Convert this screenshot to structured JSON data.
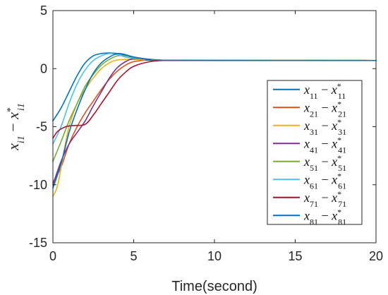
{
  "chart_data": {
    "type": "line",
    "title": "",
    "xlabel": "Time(second)",
    "ylabel": {
      "main": "x",
      "sub1": "i1",
      "minus": " − ",
      "main2": "x",
      "sup2": "*",
      "sub2": "i1"
    },
    "xlim": [
      0,
      20
    ],
    "ylim": [
      -15,
      5
    ],
    "xticks": [
      0,
      5,
      10,
      15,
      20
    ],
    "yticks": [
      -15,
      -10,
      -5,
      0,
      5
    ],
    "xtick_labels": [
      "0",
      "5",
      "10",
      "15",
      "20"
    ],
    "ytick_labels": [
      "-15",
      "-10",
      "-5",
      "0",
      "5"
    ],
    "grid": false,
    "legend_position": "center-right",
    "series": [
      {
        "name": "x11 − x*11",
        "legend": {
          "main": "x",
          "sub": "11",
          "main2": "x",
          "sup": "*",
          "sub2": "11"
        },
        "color": "#0072BD",
        "points": [
          [
            0,
            -4.5
          ],
          [
            0.5,
            -3.4
          ],
          [
            1.0,
            -2.0
          ],
          [
            1.5,
            -0.6
          ],
          [
            2.0,
            0.5
          ],
          [
            2.5,
            1.1
          ],
          [
            3.0,
            1.3
          ],
          [
            3.5,
            1.35
          ],
          [
            4.0,
            1.3
          ],
          [
            4.5,
            1.15
          ],
          [
            5.0,
            0.95
          ],
          [
            6.0,
            0.8
          ],
          [
            7.0,
            0.72
          ],
          [
            8.0,
            0.7
          ],
          [
            20,
            0.7
          ]
        ]
      },
      {
        "name": "x21 − x*21",
        "legend": {
          "main": "x",
          "sub": "21",
          "main2": "x",
          "sup": "*",
          "sub2": "21"
        },
        "color": "#D95319",
        "points": [
          [
            0,
            -9.8
          ],
          [
            0.5,
            -8.5
          ],
          [
            1.0,
            -6.5
          ],
          [
            1.5,
            -5.0
          ],
          [
            2.0,
            -3.8
          ],
          [
            2.5,
            -2.8
          ],
          [
            3.0,
            -1.8
          ],
          [
            3.5,
            -0.9
          ],
          [
            4.0,
            -0.2
          ],
          [
            4.5,
            0.3
          ],
          [
            5.0,
            0.6
          ],
          [
            6.0,
            0.75
          ],
          [
            7.0,
            0.72
          ],
          [
            8.0,
            0.7
          ],
          [
            20,
            0.7
          ]
        ]
      },
      {
        "name": "x31 − x*31",
        "legend": {
          "main": "x",
          "sub": "31",
          "main2": "x",
          "sup": "*",
          "sub2": "31"
        },
        "color": "#EDB120",
        "points": [
          [
            0,
            -11.0
          ],
          [
            0.3,
            -10.0
          ],
          [
            0.7,
            -7.0
          ],
          [
            1.0,
            -5.0
          ],
          [
            1.5,
            -3.0
          ],
          [
            2.0,
            -1.8
          ],
          [
            2.5,
            -0.8
          ],
          [
            3.0,
            0.0
          ],
          [
            3.5,
            0.5
          ],
          [
            4.0,
            0.75
          ],
          [
            5.0,
            0.8
          ],
          [
            6.0,
            0.75
          ],
          [
            7.0,
            0.72
          ],
          [
            20,
            0.7
          ]
        ]
      },
      {
        "name": "x41 − x*41",
        "legend": {
          "main": "x",
          "sub": "41",
          "main2": "x",
          "sup": "*",
          "sub2": "41"
        },
        "color": "#7E2F8E",
        "points": [
          [
            0,
            -10.0
          ],
          [
            0.5,
            -8.0
          ],
          [
            1.0,
            -6.5
          ],
          [
            1.5,
            -5.5
          ],
          [
            2.0,
            -4.5
          ],
          [
            2.5,
            -3.2
          ],
          [
            3.0,
            -2.0
          ],
          [
            3.5,
            -0.8
          ],
          [
            4.0,
            0.1
          ],
          [
            4.5,
            0.6
          ],
          [
            5.0,
            0.85
          ],
          [
            6.0,
            0.8
          ],
          [
            7.0,
            0.72
          ],
          [
            20,
            0.7
          ]
        ]
      },
      {
        "name": "x51 − x*51",
        "legend": {
          "main": "x",
          "sub": "51",
          "main2": "x",
          "sup": "*",
          "sub2": "51"
        },
        "color": "#77AC30",
        "points": [
          [
            0,
            -8.0
          ],
          [
            0.5,
            -6.3
          ],
          [
            1.0,
            -4.5
          ],
          [
            1.5,
            -3.0
          ],
          [
            2.0,
            -1.5
          ],
          [
            2.5,
            -0.5
          ],
          [
            3.0,
            0.3
          ],
          [
            3.5,
            0.8
          ],
          [
            4.0,
            1.1
          ],
          [
            4.5,
            1.1
          ],
          [
            5.0,
            1.0
          ],
          [
            6.0,
            0.8
          ],
          [
            7.0,
            0.72
          ],
          [
            20,
            0.7
          ]
        ]
      },
      {
        "name": "x61 − x*61",
        "legend": {
          "main": "x",
          "sub": "61",
          "main2": "x",
          "sup": "*",
          "sub2": "61"
        },
        "color": "#4DBEEE",
        "points": [
          [
            0,
            -6.5
          ],
          [
            0.5,
            -5.0
          ],
          [
            1.0,
            -3.0
          ],
          [
            1.5,
            -1.3
          ],
          [
            2.0,
            -0.1
          ],
          [
            2.5,
            0.7
          ],
          [
            3.0,
            1.1
          ],
          [
            3.5,
            1.3
          ],
          [
            4.0,
            1.2
          ],
          [
            4.5,
            1.0
          ],
          [
            5.0,
            0.9
          ],
          [
            6.0,
            0.8
          ],
          [
            7.0,
            0.72
          ],
          [
            20,
            0.7
          ]
        ]
      },
      {
        "name": "x71 − x*71",
        "legend": {
          "main": "x",
          "sub": "71",
          "main2": "x",
          "sup": "*",
          "sub2": "71"
        },
        "color": "#A2142F",
        "points": [
          [
            0,
            -6.0
          ],
          [
            0.3,
            -5.4
          ],
          [
            0.8,
            -5.0
          ],
          [
            1.3,
            -4.9
          ],
          [
            2.0,
            -4.8
          ],
          [
            2.5,
            -4.0
          ],
          [
            3.0,
            -3.0
          ],
          [
            3.5,
            -2.0
          ],
          [
            4.0,
            -1.0
          ],
          [
            4.5,
            -0.3
          ],
          [
            5.0,
            0.2
          ],
          [
            6.0,
            0.6
          ],
          [
            7.0,
            0.72
          ],
          [
            8.0,
            0.7
          ],
          [
            20,
            0.7
          ]
        ]
      },
      {
        "name": "x81 − x*81",
        "legend": {
          "main": "x",
          "sub": "81",
          "main2": "x",
          "sup": "*",
          "sub2": "81"
        },
        "color": "#0072BD",
        "points": [
          [
            0,
            -10.3
          ],
          [
            0.5,
            -8.2
          ],
          [
            1.0,
            -5.5
          ],
          [
            1.5,
            -3.5
          ],
          [
            2.0,
            -1.8
          ],
          [
            2.5,
            -0.4
          ],
          [
            3.0,
            0.5
          ],
          [
            3.5,
            1.0
          ],
          [
            4.0,
            1.3
          ],
          [
            4.5,
            1.2
          ],
          [
            5.0,
            1.0
          ],
          [
            6.0,
            0.8
          ],
          [
            7.0,
            0.72
          ],
          [
            20,
            0.7
          ]
        ]
      }
    ]
  }
}
